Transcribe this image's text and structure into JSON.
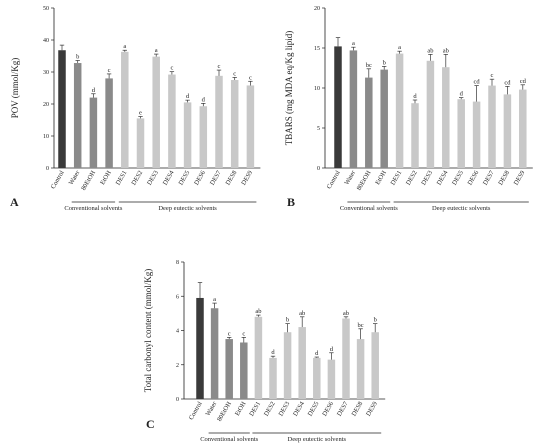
{
  "colors": {
    "dark": "#3a3a3a",
    "mid": "#8a8a8a",
    "light": "#c8c8c8",
    "axis": "#222222"
  },
  "chart_data": [
    {
      "type": "bar",
      "panel": "A",
      "ylabel": "POV (mmol/Kg)",
      "ylim": [
        0,
        50
      ],
      "yticks": [
        0,
        10,
        20,
        30,
        40,
        50
      ],
      "categories": [
        "Control",
        "Water",
        "80EtOH",
        "EtOH",
        "DES1",
        "DES2",
        "DES3",
        "DES4",
        "DES5",
        "DES6",
        "DES7",
        "DES8",
        "DES9"
      ],
      "values": [
        36.8,
        32.8,
        22.0,
        28.0,
        36.3,
        15.5,
        34.8,
        29.2,
        20.5,
        19.3,
        28.8,
        27.5,
        25.8
      ],
      "errors": [
        1.6,
        0.8,
        1.2,
        1.4,
        0.5,
        0.6,
        0.8,
        0.9,
        0.7,
        0.9,
        1.8,
        0.8,
        1.3
      ],
      "letters": [
        "",
        "b",
        "d",
        "c",
        "a",
        "e",
        "a",
        "c",
        "d",
        "d",
        "c",
        "c",
        "c"
      ],
      "groups": [
        {
          "label": "Conventional solvents",
          "range": [
            1,
            3
          ]
        },
        {
          "label": "Deep eutectic solvents",
          "range": [
            4,
            12
          ]
        }
      ]
    },
    {
      "type": "bar",
      "panel": "B",
      "ylabel": "TBARS (mg MDA eq/Kg lipid)",
      "ylim": [
        0,
        20
      ],
      "yticks": [
        0,
        5,
        10,
        15,
        20
      ],
      "categories": [
        "Control",
        "Water",
        "80EtOH",
        "EtOH",
        "DES1",
        "DES2",
        "DES3",
        "DES4",
        "DES5",
        "DES6",
        "DES7",
        "DES8",
        "DES9"
      ],
      "values": [
        15.2,
        14.7,
        11.3,
        12.3,
        14.3,
        8.1,
        13.4,
        12.6,
        8.6,
        8.3,
        10.3,
        9.2,
        9.8
      ],
      "errors": [
        1.1,
        0.4,
        1.1,
        0.4,
        0.3,
        0.4,
        0.8,
        1.6,
        0.2,
        2.0,
        0.8,
        1.0,
        0.6
      ],
      "letters": [
        "",
        "a",
        "bc",
        "b",
        "a",
        "d",
        "ab",
        "ab",
        "d",
        "cd",
        "c",
        "cd",
        "cd"
      ],
      "groups": [
        {
          "label": "Conventional solvents",
          "range": [
            1,
            3
          ]
        },
        {
          "label": "Deep eutectic solvents",
          "range": [
            4,
            12
          ]
        }
      ]
    },
    {
      "type": "bar",
      "panel": "C",
      "ylabel": "Total carbonyl content (mmol/Kg)",
      "ylim": [
        0,
        8
      ],
      "yticks": [
        0,
        2,
        4,
        6,
        8
      ],
      "categories": [
        "Control",
        "Water",
        "80EtOH",
        "EtOH",
        "DES1",
        "DES2",
        "DES3",
        "DES4",
        "DES5",
        "DES6",
        "DES7",
        "DES8",
        "DES9"
      ],
      "values": [
        5.9,
        5.3,
        3.5,
        3.3,
        4.8,
        2.4,
        3.9,
        4.2,
        2.4,
        2.3,
        4.7,
        3.5,
        3.9
      ],
      "errors": [
        0.9,
        0.3,
        0.1,
        0.3,
        0.1,
        0.1,
        0.5,
        0.6,
        0.05,
        0.4,
        0.1,
        0.6,
        0.5
      ],
      "letters": [
        "",
        "a",
        "c",
        "c",
        "ab",
        "d",
        "b",
        "ab",
        "d",
        "d",
        "ab",
        "bc",
        "b"
      ],
      "groups": [
        {
          "label": "Conventional solvents",
          "range": [
            1,
            3
          ]
        },
        {
          "label": "Deep eutectic solvents",
          "range": [
            4,
            12
          ]
        }
      ]
    }
  ]
}
